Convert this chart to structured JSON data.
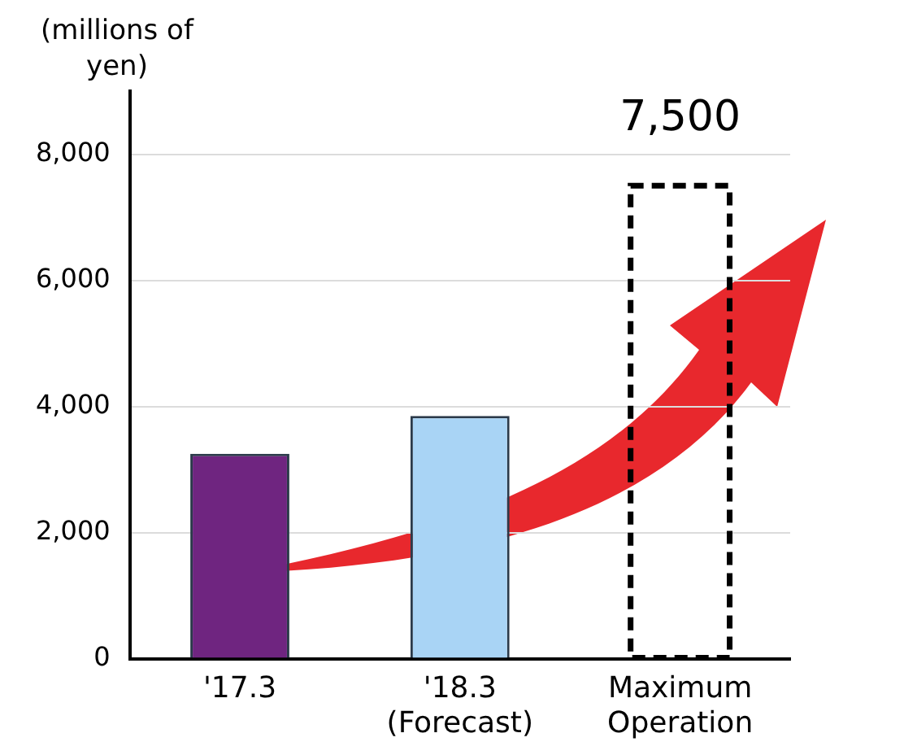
{
  "chart_data": {
    "type": "bar",
    "ylabel": "(millions of yen)",
    "categories": [
      "'17.3",
      "'18.3 (Forecast)",
      "Maximum Operation"
    ],
    "series": [
      {
        "values": [
          3250,
          3850,
          null
        ],
        "colors": [
          "#6f2580",
          "#a9d4f5",
          null
        ]
      },
      {
        "values": [
          null,
          null,
          7500
        ],
        "color": "#000000",
        "line_style": "dashed"
      }
    ],
    "value_labels": [
      null,
      null,
      "7,500"
    ],
    "ylim": [
      0,
      9000
    ],
    "yticks": [
      0,
      {
        "value": 2000,
        "label": "2,000"
      },
      {
        "value": 4000,
        "label": "4,000"
      },
      {
        "value": 6000,
        "label": "6,000"
      },
      {
        "value": 8000,
        "label": "8,000"
      }
    ],
    "grid": "y",
    "legend": false
  }
}
